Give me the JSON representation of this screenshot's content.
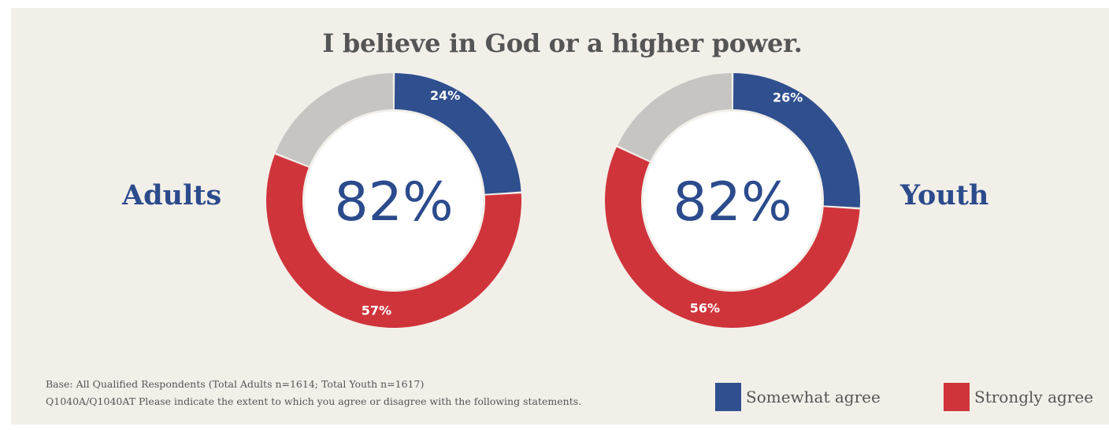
{
  "title": "I believe in God or a higher power.",
  "colors": {
    "background": "#f2efe9",
    "somewhat_agree": "#2f4f8f",
    "strongly_agree": "#d0343b",
    "remainder": "#c7c5c2",
    "hole": "#ffffff",
    "center_text": "#2b4b8c"
  },
  "chart_data": [
    {
      "type": "donut",
      "group_label": "Adults",
      "center_label": "82%",
      "series": [
        {
          "name": "Somewhat agree",
          "value": 24,
          "label": "24%"
        },
        {
          "name": "Strongly agree",
          "value": 57,
          "label": "57%"
        },
        {
          "name": "",
          "value": 19,
          "label": ""
        }
      ]
    },
    {
      "type": "donut",
      "group_label": "Youth",
      "center_label": "82%",
      "series": [
        {
          "name": "Somewhat agree",
          "value": 26,
          "label": "26%"
        },
        {
          "name": "Strongly agree",
          "value": 56,
          "label": "56%"
        },
        {
          "name": "",
          "value": 18,
          "label": ""
        }
      ]
    }
  ],
  "legend": {
    "placement": "bottom-right",
    "items": [
      {
        "label": "Somewhat agree",
        "color": "#2f4f8f"
      },
      {
        "label": "Strongly agree",
        "color": "#d0343b"
      }
    ]
  },
  "footnotes": {
    "base": "Base: All Qualified Respondents (Total Adults n=1614; Total Youth n=1617)",
    "question": "Q1040A/Q1040AT Please indicate the extent to which you agree or disagree with the following statements."
  }
}
